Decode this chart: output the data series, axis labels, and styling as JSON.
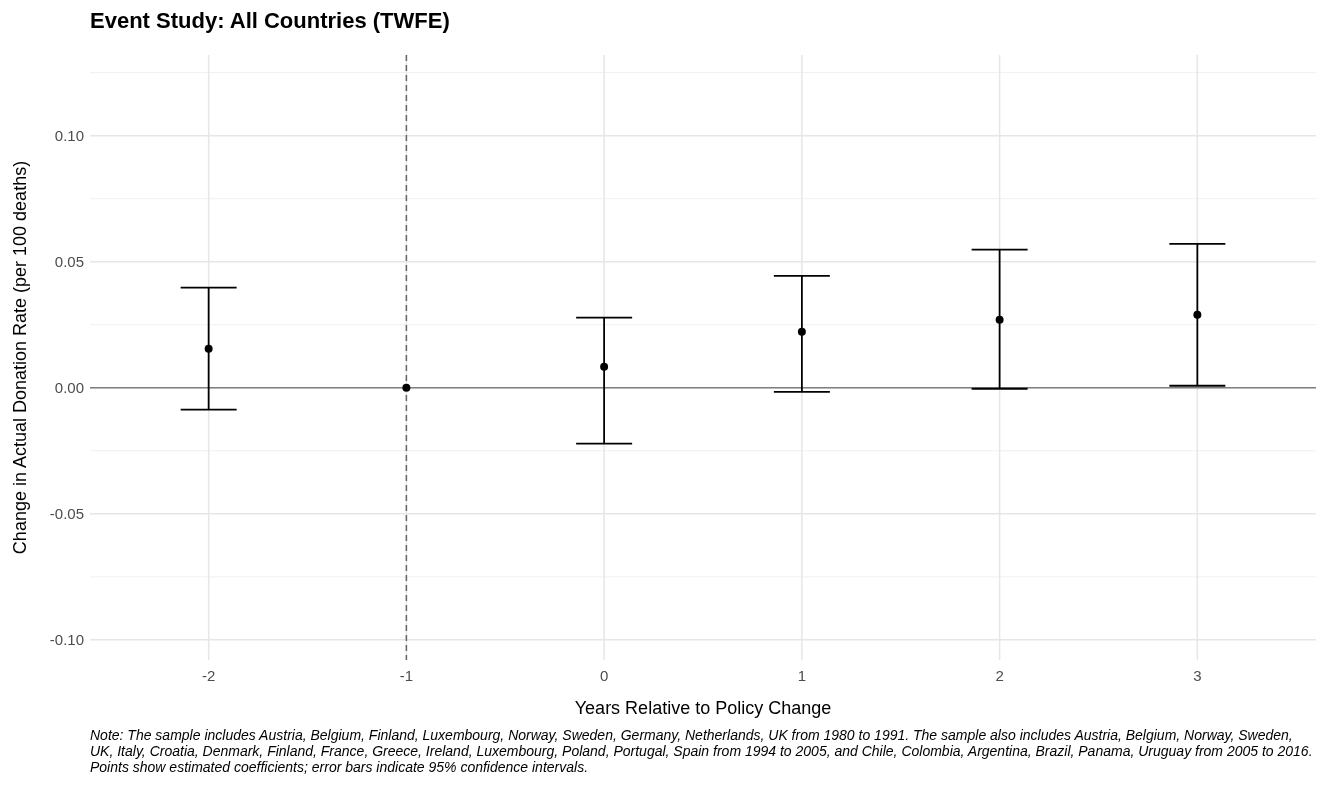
{
  "chart_data": {
    "type": "scatter",
    "title": "Event Study: All Countries (TWFE)",
    "xlabel": "Years Relative to Policy Change",
    "ylabel": "Change in Actual Donation Rate (per 100 deaths)",
    "x": [
      -2,
      -1,
      0,
      1,
      2,
      3
    ],
    "values": [
      0.0155,
      0,
      0.0083,
      0.0222,
      0.027,
      0.029
    ],
    "errors": [
      [
        -0.0087,
        0.0397
      ],
      null,
      [
        -0.0222,
        0.0278
      ],
      [
        -0.0016,
        0.0444
      ],
      [
        -0.0004,
        0.0548
      ],
      [
        0.0008,
        0.0571
      ]
    ],
    "color": "#000000",
    "marker": "circle",
    "xlim": [
      -2.6,
      3.6
    ],
    "xticks": [
      -2,
      -1,
      0,
      1,
      2,
      3
    ],
    "ylim": [
      -0.108,
      0.132
    ],
    "yticks": [
      {
        "value": -0.1,
        "label": "-0.10"
      },
      {
        "value": -0.05,
        "label": "-0.05"
      },
      {
        "value": 0,
        "label": "0.00"
      },
      {
        "value": 0.05,
        "label": "0.05"
      },
      {
        "value": 0.1,
        "label": "0.10"
      }
    ],
    "grid": true,
    "ref_lines": [
      {
        "axis": "y",
        "value": 0,
        "color": "#7f7f7f",
        "line_style": "solid"
      },
      {
        "axis": "x",
        "value": -1,
        "color": "#666666",
        "line_style": "dashed"
      }
    ],
    "annotations": [
      "Note: The sample includes Austria, Belgium, Finland, Luxembourg, Norway, Sweden, Germany, Netherlands, UK from 1980 to 1991. The sample also includes Austria, Belgium, Norway, Sweden, UK, Italy, Croatia, Denmark, Finland, France, Greece, Ireland, Luxembourg, Poland, Portugal, Spain from 1994 to 2005, and Chile, Colombia, Argentina, Brazil, Panama, Uruguay from 2005 to 2016. Points show estimated coefficients; error bars indicate 95% confidence intervals."
    ]
  }
}
